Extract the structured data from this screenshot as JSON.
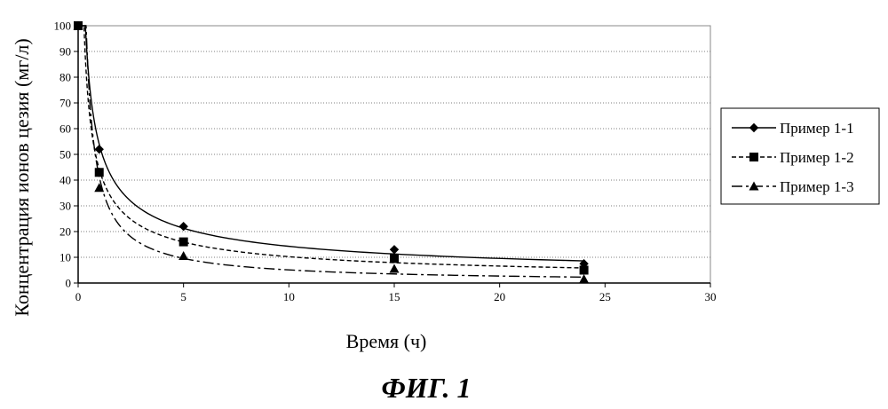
{
  "chart_data": {
    "type": "line",
    "xlabel": "Время (ч)",
    "ylabel": "Концентрация ионов цезия (мг/л)",
    "xlim": [
      0,
      30
    ],
    "ylim": [
      0,
      100
    ],
    "xticks": [
      0,
      5,
      10,
      15,
      20,
      25,
      30
    ],
    "yticks": [
      0,
      10,
      20,
      30,
      40,
      50,
      60,
      70,
      80,
      90,
      100
    ],
    "grid": "horizontal dotted",
    "legend_position": "right",
    "series": [
      {
        "name": "Пример 1-1",
        "marker": "diamond",
        "dash": "solid",
        "x": [
          0,
          1,
          5,
          15,
          24
        ],
        "y": [
          100,
          52,
          22,
          13,
          7.5
        ]
      },
      {
        "name": "Пример 1-2",
        "marker": "square",
        "dash": "dashed",
        "x": [
          0,
          1,
          5,
          15,
          24
        ],
        "y": [
          100,
          43,
          16,
          9.5,
          5
        ]
      },
      {
        "name": "Пример 1-3",
        "marker": "triangle",
        "dash": "dashdot",
        "x": [
          0,
          1,
          5,
          15,
          24
        ],
        "y": [
          100,
          37,
          10.5,
          5.5,
          1.5
        ]
      }
    ]
  },
  "caption": "ФИГ. 1"
}
